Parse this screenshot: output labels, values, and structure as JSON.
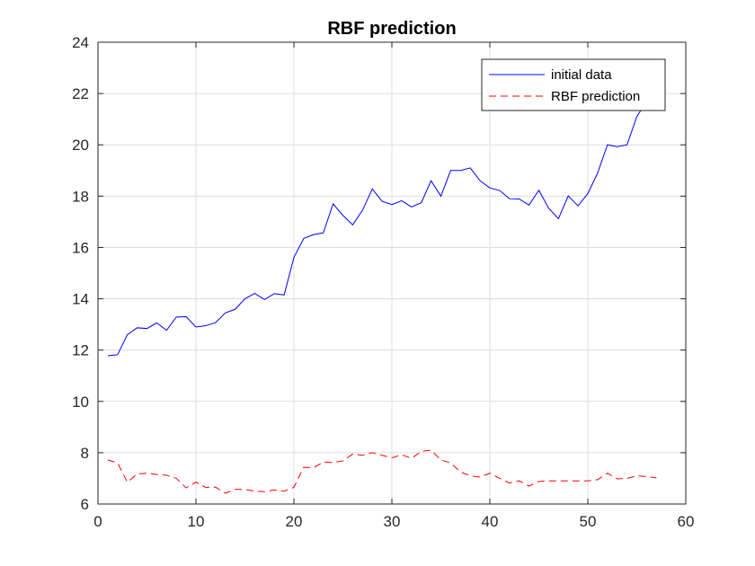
{
  "chart_data": {
    "type": "line",
    "title": "RBF prediction",
    "xlabel": "",
    "ylabel": "",
    "xlim": [
      0,
      60
    ],
    "ylim": [
      6,
      24
    ],
    "xticks": [
      0,
      10,
      20,
      30,
      40,
      50,
      60
    ],
    "yticks": [
      6,
      8,
      10,
      12,
      14,
      16,
      18,
      20,
      22,
      24
    ],
    "grid": true,
    "legend_position": "top-right",
    "x": [
      1,
      2,
      3,
      4,
      5,
      6,
      7,
      8,
      9,
      10,
      11,
      12,
      13,
      14,
      15,
      16,
      17,
      18,
      19,
      20,
      21,
      22,
      23,
      24,
      25,
      26,
      27,
      28,
      29,
      30,
      31,
      32,
      33,
      34,
      35,
      36,
      37,
      38,
      39,
      40,
      41,
      42,
      43,
      44,
      45,
      46,
      47,
      48,
      49,
      50,
      51,
      52,
      53,
      54,
      55,
      56,
      57
    ],
    "series": [
      {
        "name": "initial data",
        "color": "#0000ff",
        "style": "solid",
        "values": [
          11.78,
          11.82,
          12.6,
          12.87,
          12.84,
          13.06,
          12.77,
          13.29,
          13.3,
          12.9,
          12.95,
          13.07,
          13.45,
          13.59,
          14.0,
          14.21,
          13.97,
          14.2,
          14.15,
          15.61,
          16.35,
          16.5,
          16.57,
          17.7,
          17.25,
          16.88,
          17.45,
          18.28,
          17.8,
          17.67,
          17.82,
          17.58,
          17.74,
          18.6,
          18.0,
          19.0,
          19.0,
          19.1,
          18.6,
          18.32,
          18.22,
          17.9,
          17.89,
          17.65,
          18.23,
          17.53,
          17.12,
          18.01,
          17.62,
          18.1,
          18.9,
          20.0,
          19.93,
          20.0,
          21.1,
          21.7,
          23.33
        ]
      },
      {
        "name": "RBF prediction",
        "color": "#ff0000",
        "style": "dashed",
        "values": [
          7.72,
          7.6,
          6.85,
          7.17,
          7.2,
          7.15,
          7.12,
          7.0,
          6.63,
          6.85,
          6.65,
          6.66,
          6.42,
          6.57,
          6.57,
          6.5,
          6.48,
          6.55,
          6.5,
          6.65,
          7.43,
          7.42,
          7.63,
          7.62,
          7.68,
          7.95,
          7.9,
          8.0,
          7.9,
          7.8,
          7.92,
          7.78,
          8.05,
          8.1,
          7.72,
          7.6,
          7.25,
          7.1,
          7.05,
          7.2,
          7.0,
          6.82,
          6.9,
          6.7,
          6.88,
          6.9,
          6.9,
          6.9,
          6.9,
          6.9,
          6.95,
          7.2,
          6.98,
          7.0,
          7.1,
          7.07,
          7.02
        ]
      }
    ]
  }
}
